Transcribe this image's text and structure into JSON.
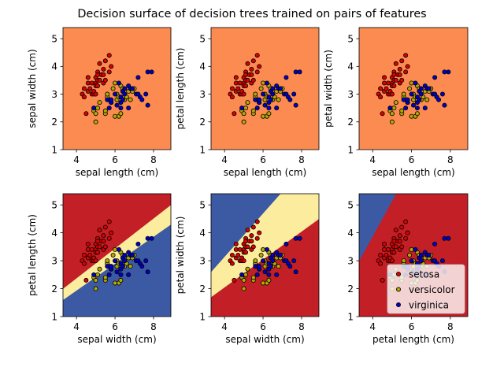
{
  "chart_data": {
    "type": "scatter",
    "title": "Decision surface of decision trees trained on pairs of features",
    "colors": {
      "region_a": "#c21f27",
      "region_b": "#fcec9e",
      "region_c": "#3c5aa4",
      "region_single": "#fb8b50",
      "point_setosa": "#dc0000",
      "point_versicolor": "#b4a800",
      "point_virginica": "#0000c8"
    },
    "legend": {
      "placement": "lower-right of last panel",
      "entries": [
        "setosa",
        "versicolor",
        "virginica"
      ]
    },
    "points": {
      "setosa": [
        [
          4.3,
          3.0
        ],
        [
          4.4,
          2.9
        ],
        [
          4.4,
          3.2
        ],
        [
          4.5,
          2.3
        ],
        [
          4.6,
          3.1
        ],
        [
          4.6,
          3.4
        ],
        [
          4.6,
          3.6
        ],
        [
          4.7,
          3.2
        ],
        [
          4.8,
          3.4
        ],
        [
          4.8,
          3.0
        ],
        [
          4.9,
          3.0
        ],
        [
          4.9,
          3.1
        ],
        [
          5.0,
          3.6
        ],
        [
          5.0,
          3.4
        ],
        [
          5.0,
          3.0
        ],
        [
          5.0,
          3.3
        ],
        [
          5.1,
          3.5
        ],
        [
          5.1,
          3.8
        ],
        [
          5.1,
          3.7
        ],
        [
          5.1,
          3.3
        ],
        [
          5.2,
          3.5
        ],
        [
          5.2,
          4.1
        ],
        [
          5.3,
          3.7
        ],
        [
          5.4,
          3.9
        ],
        [
          5.4,
          3.7
        ],
        [
          5.4,
          3.4
        ],
        [
          5.5,
          4.2
        ],
        [
          5.5,
          3.5
        ],
        [
          5.7,
          4.4
        ],
        [
          5.7,
          3.8
        ],
        [
          5.8,
          4.0
        ]
      ],
      "versicolor": [
        [
          4.9,
          2.4
        ],
        [
          5.0,
          2.0
        ],
        [
          5.0,
          2.3
        ],
        [
          5.1,
          2.5
        ],
        [
          5.2,
          2.7
        ],
        [
          5.5,
          2.3
        ],
        [
          5.5,
          2.4
        ],
        [
          5.6,
          2.9
        ],
        [
          5.6,
          3.0
        ],
        [
          5.7,
          2.8
        ],
        [
          5.8,
          2.7
        ],
        [
          5.9,
          3.2
        ],
        [
          6.0,
          2.2
        ],
        [
          6.0,
          3.4
        ],
        [
          6.1,
          2.8
        ],
        [
          6.1,
          3.0
        ],
        [
          6.2,
          2.2
        ],
        [
          6.2,
          2.9
        ],
        [
          6.3,
          2.3
        ],
        [
          6.3,
          3.3
        ],
        [
          6.4,
          3.2
        ],
        [
          6.5,
          2.8
        ],
        [
          6.6,
          2.9
        ],
        [
          6.7,
          3.1
        ],
        [
          6.8,
          2.8
        ],
        [
          6.9,
          3.1
        ],
        [
          7.0,
          3.2
        ]
      ],
      "virginica": [
        [
          4.9,
          2.5
        ],
        [
          5.6,
          2.8
        ],
        [
          5.7,
          2.5
        ],
        [
          5.8,
          2.7
        ],
        [
          5.8,
          2.8
        ],
        [
          6.0,
          3.0
        ],
        [
          6.1,
          2.6
        ],
        [
          6.2,
          3.4
        ],
        [
          6.3,
          2.5
        ],
        [
          6.3,
          2.7
        ],
        [
          6.3,
          2.9
        ],
        [
          6.4,
          2.8
        ],
        [
          6.4,
          3.1
        ],
        [
          6.5,
          3.0
        ],
        [
          6.5,
          3.2
        ],
        [
          6.7,
          3.3
        ],
        [
          6.7,
          2.5
        ],
        [
          6.8,
          3.2
        ],
        [
          6.9,
          3.2
        ],
        [
          7.1,
          3.0
        ],
        [
          7.2,
          3.6
        ],
        [
          7.2,
          3.0
        ],
        [
          7.3,
          2.9
        ],
        [
          7.4,
          2.8
        ],
        [
          7.6,
          3.0
        ],
        [
          7.7,
          3.8
        ],
        [
          7.7,
          2.6
        ],
        [
          7.9,
          3.8
        ]
      ]
    },
    "panels": [
      {
        "type": "scatter",
        "xlabel": "sepal length (cm)",
        "ylabel": "sepal width (cm)",
        "xlim": [
          3.3,
          8.9
        ],
        "ylim": [
          1.0,
          5.4
        ],
        "xticks": [
          4,
          6,
          8
        ],
        "yticks": [
          1,
          2,
          3,
          4,
          5
        ],
        "regions": [
          {
            "color": "region_single",
            "points": [
              [
                3.3,
                1.0
              ],
              [
                8.9,
                1.0
              ],
              [
                8.9,
                5.4
              ],
              [
                3.3,
                5.4
              ]
            ]
          }
        ]
      },
      {
        "type": "scatter",
        "xlabel": "sepal length (cm)",
        "ylabel": "petal length (cm)",
        "xlim": [
          3.3,
          8.9
        ],
        "ylim": [
          1.0,
          5.4
        ],
        "xticks": [
          4,
          6,
          8
        ],
        "yticks": [
          1,
          2,
          3,
          4,
          5
        ],
        "regions": [
          {
            "color": "region_single",
            "points": [
              [
                3.3,
                1.0
              ],
              [
                8.9,
                1.0
              ],
              [
                8.9,
                5.4
              ],
              [
                3.3,
                5.4
              ]
            ]
          }
        ]
      },
      {
        "type": "scatter",
        "xlabel": "sepal length (cm)",
        "ylabel": "petal width (cm)",
        "xlim": [
          3.3,
          8.9
        ],
        "ylim": [
          1.0,
          5.4
        ],
        "xticks": [
          4,
          6,
          8
        ],
        "yticks": [
          1,
          2,
          3,
          4,
          5
        ],
        "regions": [
          {
            "color": "region_single",
            "points": [
              [
                3.3,
                1.0
              ],
              [
                8.9,
                1.0
              ],
              [
                8.9,
                5.4
              ],
              [
                3.3,
                5.4
              ]
            ]
          }
        ]
      },
      {
        "type": "scatter",
        "xlabel": "sepal width (cm)",
        "ylabel": "petal length (cm)",
        "xlim": [
          3.3,
          8.9
        ],
        "ylim": [
          1.0,
          5.4
        ],
        "xticks": [
          4,
          6,
          8
        ],
        "yticks": [
          1,
          2,
          3,
          4,
          5
        ],
        "regions": [
          {
            "color": "region_c",
            "points": [
              [
                3.3,
                1.0
              ],
              [
                8.9,
                1.0
              ],
              [
                8.9,
                4.3
              ],
              [
                3.3,
                1.6
              ]
            ]
          },
          {
            "color": "region_b",
            "points": [
              [
                3.3,
                1.6
              ],
              [
                8.9,
                4.3
              ],
              [
                8.9,
                5.0
              ],
              [
                3.3,
                2.0
              ]
            ]
          },
          {
            "color": "region_a",
            "points": [
              [
                3.3,
                2.0
              ],
              [
                8.9,
                5.0
              ],
              [
                8.9,
                5.4
              ],
              [
                3.3,
                5.4
              ]
            ]
          }
        ]
      },
      {
        "type": "scatter",
        "xlabel": "sepal width (cm)",
        "ylabel": "petal width (cm)",
        "xlim": [
          3.3,
          8.9
        ],
        "ylim": [
          1.0,
          5.4
        ],
        "xticks": [
          4,
          6,
          8
        ],
        "yticks": [
          1,
          2,
          3,
          4,
          5
        ],
        "regions": [
          {
            "color": "region_a",
            "points": [
              [
                3.3,
                1.0
              ],
              [
                8.9,
                1.0
              ],
              [
                8.9,
                4.5
              ],
              [
                3.3,
                1.7
              ]
            ]
          },
          {
            "color": "region_b",
            "points": [
              [
                3.3,
                1.7
              ],
              [
                8.9,
                4.5
              ],
              [
                8.9,
                5.4
              ],
              [
                6.9,
                5.4
              ],
              [
                3.3,
                2.6
              ]
            ]
          },
          {
            "color": "region_c",
            "points": [
              [
                3.3,
                2.6
              ],
              [
                6.9,
                5.4
              ],
              [
                3.3,
                5.4
              ]
            ]
          }
        ]
      },
      {
        "type": "scatter",
        "xlabel": "petal length (cm)",
        "ylabel": "",
        "showLegend": true,
        "xlim": [
          3.3,
          8.9
        ],
        "ylim": [
          1.0,
          5.4
        ],
        "xticks": [
          4,
          6,
          8
        ],
        "yticks": [
          1,
          2,
          3,
          4,
          5
        ],
        "regions": [
          {
            "color": "region_a",
            "points": [
              [
                3.3,
                1.0
              ],
              [
                8.9,
                1.0
              ],
              [
                8.9,
                5.4
              ],
              [
                5.2,
                5.4
              ],
              [
                3.3,
                3.0
              ]
            ]
          },
          {
            "color": "region_c",
            "points": [
              [
                3.3,
                3.0
              ],
              [
                5.2,
                5.4
              ],
              [
                3.3,
                5.4
              ]
            ]
          }
        ]
      }
    ]
  }
}
